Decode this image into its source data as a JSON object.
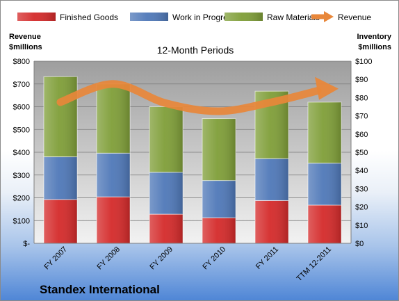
{
  "chart_data": {
    "type": "bar",
    "title": "12-Month Periods",
    "company": "Standex International",
    "left_axis_label": [
      "Revenue",
      "$millions"
    ],
    "right_axis_label": [
      "Inventory",
      "$millions"
    ],
    "categories": [
      "FY 2007",
      "FY 2008",
      "FY 2009",
      "FY 2010",
      "FY 2011",
      "TTM 12-2011"
    ],
    "left_ticks": [
      "$-",
      "$100",
      "$200",
      "$300",
      "$400",
      "$500",
      "$600",
      "$700",
      "$800"
    ],
    "right_ticks": [
      "$0",
      "$10",
      "$20",
      "$30",
      "$40",
      "$50",
      "$60",
      "$70",
      "$80",
      "$90",
      "$100"
    ],
    "ylim_left": [
      0,
      800
    ],
    "ylim_right": [
      0,
      100
    ],
    "stacked": true,
    "grid": true,
    "legend_position": "top",
    "series": [
      {
        "name": "Finished Goods",
        "color": "#d42a2a",
        "axis": "right",
        "values": [
          24,
          25.5,
          16,
          14,
          23.5,
          21
        ]
      },
      {
        "name": "Work in Progress",
        "color": "#4f78b8",
        "axis": "right",
        "values": [
          23.5,
          24,
          23,
          20.5,
          23,
          23
        ]
      },
      {
        "name": "Raw Materials",
        "color": "#7f9e38",
        "axis": "right",
        "values": [
          44,
          38,
          36,
          34,
          37,
          33.5
        ]
      },
      {
        "name": "Revenue",
        "color": "#e8873a",
        "axis": "left",
        "type": "line",
        "values": [
          620,
          700,
          615,
          580,
          620,
          670
        ]
      }
    ]
  }
}
